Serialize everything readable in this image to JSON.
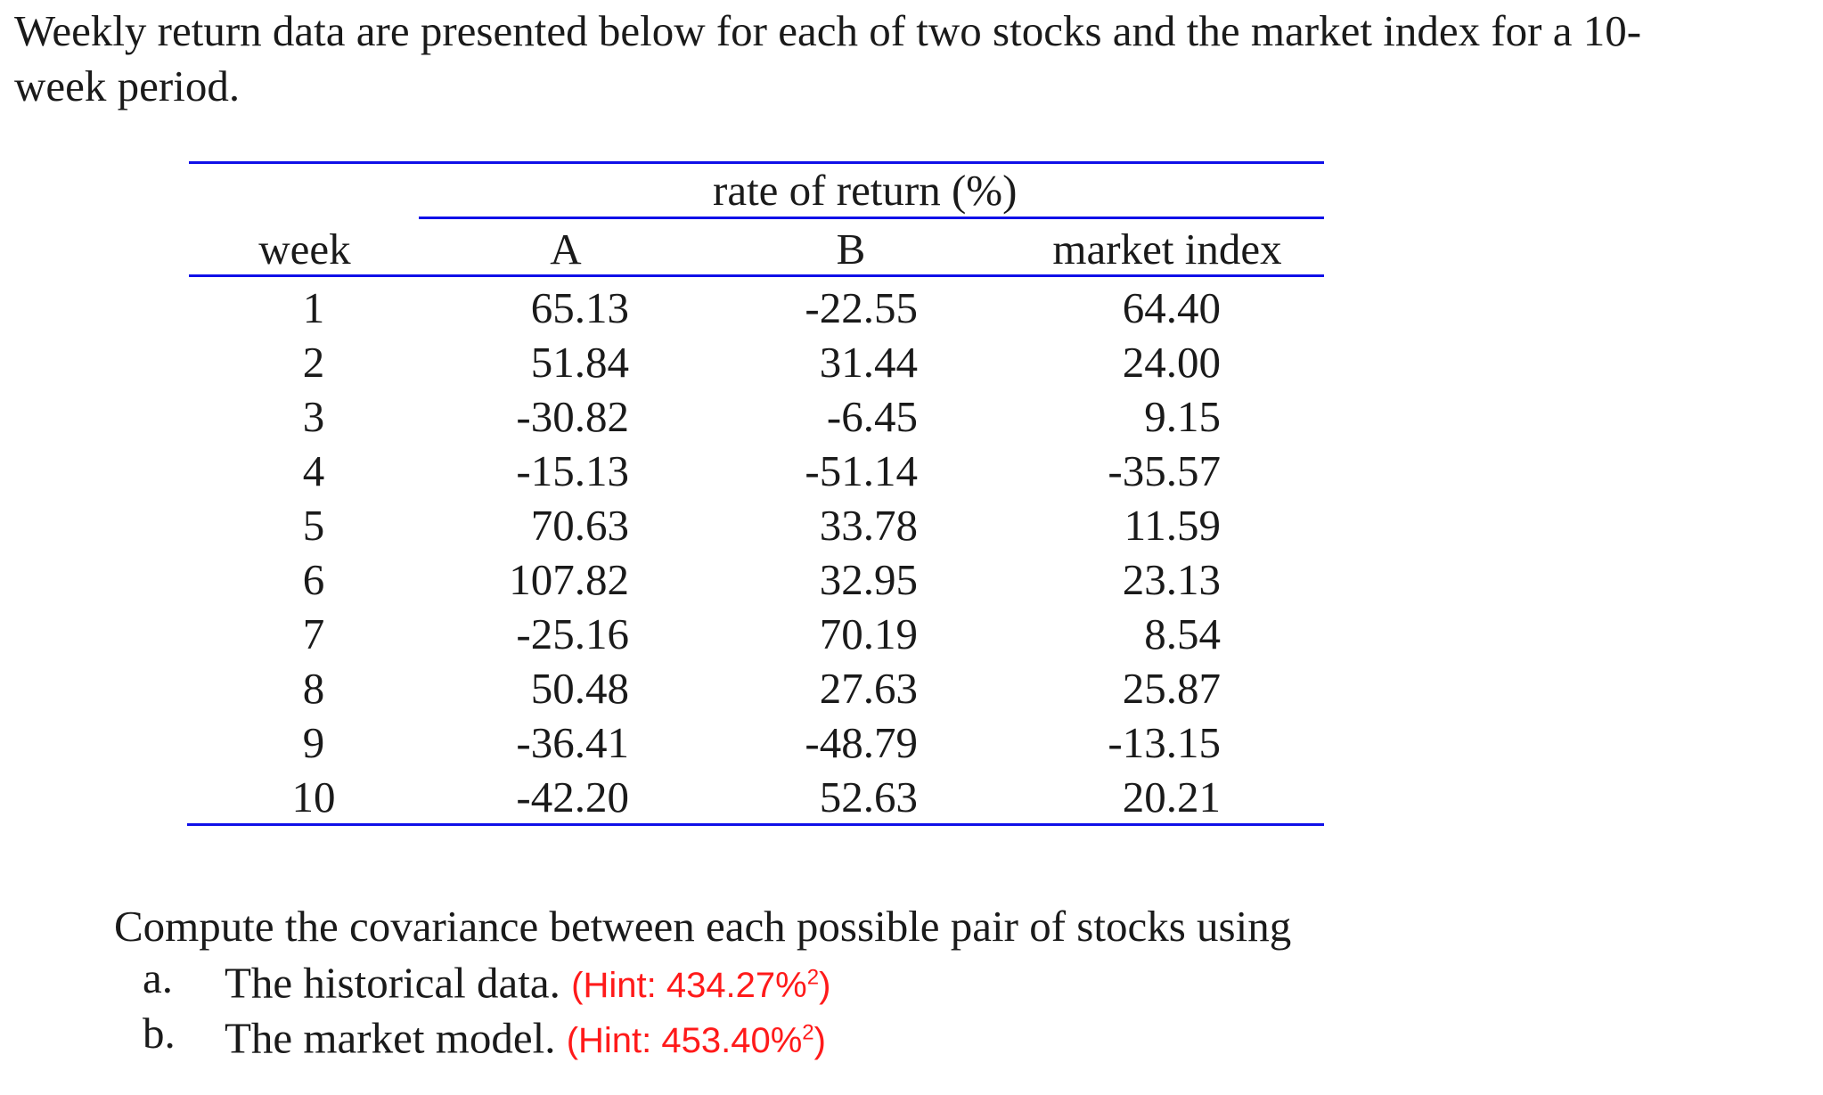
{
  "intro": {
    "line1": "Weekly return data are presented below for each of two stocks and the market index for a 10-",
    "line2": "week period."
  },
  "table": {
    "group_header": "rate of return (%)",
    "columns": [
      "week",
      "A",
      "B",
      "market index"
    ],
    "rows": [
      [
        "1",
        "65.13",
        "-22.55",
        "64.40"
      ],
      [
        "2",
        "51.84",
        "31.44",
        "24.00"
      ],
      [
        "3",
        "-30.82",
        "-6.45",
        "9.15"
      ],
      [
        "4",
        "-15.13",
        "-51.14",
        "-35.57"
      ],
      [
        "5",
        "70.63",
        "33.78",
        "11.59"
      ],
      [
        "6",
        "107.82",
        "32.95",
        "23.13"
      ],
      [
        "7",
        "-25.16",
        "70.19",
        "8.54"
      ],
      [
        "8",
        "50.48",
        "27.63",
        "25.87"
      ],
      [
        "9",
        "-36.41",
        "-48.79",
        "-13.15"
      ],
      [
        "10",
        "-42.20",
        "52.63",
        "20.21"
      ]
    ],
    "rule_color": "#1010e8"
  },
  "question": {
    "prompt": "Compute the covariance between each possible pair of stocks using",
    "items": [
      {
        "marker": "a.",
        "text": "The historical data.",
        "hint_prefix": "(Hint: 434.27%",
        "hint_sup": "2",
        "hint_suffix": ")"
      },
      {
        "marker": "b.",
        "text": "The market model.",
        "hint_prefix": "(Hint: 453.40%",
        "hint_sup": "2",
        "hint_suffix": ")"
      }
    ],
    "hint_color": "#ff1a1a"
  }
}
